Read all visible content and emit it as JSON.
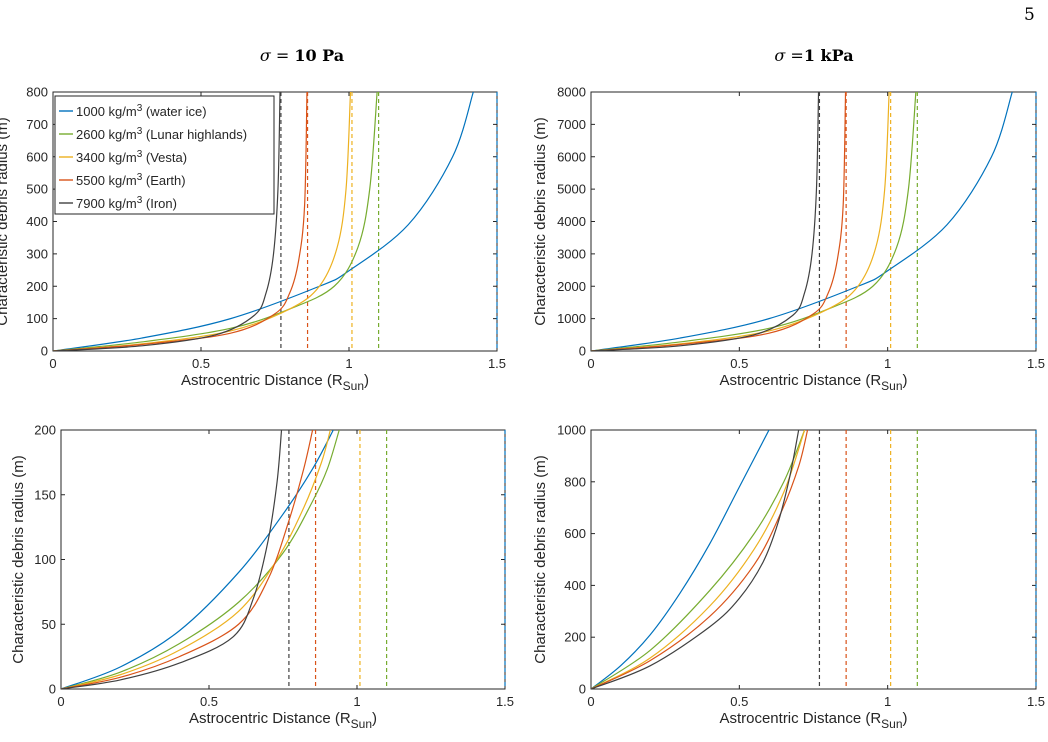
{
  "page_number": "5",
  "column_titles": [
    {
      "symbol": "σ",
      "rest": " = ",
      "value": "10 Pa"
    },
    {
      "symbol": "σ",
      "rest": " =",
      "value": "1 kPa"
    }
  ],
  "legend": [
    {
      "label_pre": "1000 kg/m",
      "sup": "3",
      "label_post": " (water ice)",
      "color": "#0072BD"
    },
    {
      "label_pre": "2600 kg/m",
      "sup": "3",
      "label_post": " (Lunar highlands)",
      "color": "#77AC30"
    },
    {
      "label_pre": "3400 kg/m",
      "sup": "3",
      "label_post": " (Vesta)",
      "color": "#EDB120"
    },
    {
      "label_pre": "5500 kg/m",
      "sup": "3",
      "label_post": " (Earth)",
      "color": "#D95319"
    },
    {
      "label_pre": "7900 kg/m",
      "sup": "3",
      "label_post": " (Iron)",
      "color": "#404040"
    }
  ],
  "chart_data": [
    {
      "type": "line",
      "xlabel": "Astrocentric Distance (R",
      "xlabel_sub": "Sun",
      "xlabel_end": ")",
      "ylabel": "Characteristic debris radius (m)",
      "xlim": [
        0,
        1.5
      ],
      "ylim": [
        0,
        800
      ],
      "xticks": [
        0,
        0.5,
        1,
        1.5
      ],
      "xtick_labels": [
        "0",
        "0.5",
        "1",
        "1.5"
      ],
      "yticks": [
        0,
        100,
        200,
        300,
        400,
        500,
        600,
        700,
        800
      ],
      "ytick_labels": [
        "0",
        "100",
        "200",
        "300",
        "400",
        "500",
        "600",
        "700",
        "800"
      ],
      "legend_position": "top-left",
      "grid": false,
      "asymptotes": [
        1.5,
        1.1,
        1.01,
        0.86,
        0.77
      ],
      "series": [
        {
          "name": "1000 kg/m3 (water ice)",
          "x": [
            0,
            0.3,
            0.6,
            0.9,
            1.0,
            1.2,
            1.35,
            1.42
          ],
          "y": [
            0,
            40,
            100,
            200,
            248,
            390,
            600,
            800
          ]
        },
        {
          "name": "2600 kg/m3 (Lunar highlands)",
          "x": [
            0,
            0.3,
            0.6,
            0.8,
            0.95,
            1.03,
            1.07,
            1.095
          ],
          "y": [
            0,
            28,
            70,
            130,
            200,
            320,
            500,
            800
          ]
        },
        {
          "name": "3400 kg/m3 (Vesta)",
          "x": [
            0,
            0.3,
            0.6,
            0.8,
            0.9,
            0.96,
            0.99,
            1.005
          ],
          "y": [
            0,
            22,
            62,
            130,
            200,
            320,
            500,
            800
          ]
        },
        {
          "name": "5500 kg/m3 (Earth)",
          "x": [
            0,
            0.3,
            0.6,
            0.75,
            0.8,
            0.83,
            0.85,
            0.858
          ],
          "y": [
            0,
            20,
            55,
            115,
            180,
            280,
            450,
            800
          ]
        },
        {
          "name": "7900 kg/m3 (Iron)",
          "x": [
            0,
            0.3,
            0.55,
            0.68,
            0.72,
            0.745,
            0.76,
            0.767
          ],
          "y": [
            0,
            16,
            50,
            110,
            180,
            300,
            500,
            800
          ]
        }
      ]
    },
    {
      "type": "line",
      "xlabel": "Astrocentric Distance (R",
      "xlabel_sub": "Sun",
      "xlabel_end": ")",
      "ylabel": "Characteristic debris radius (m)",
      "xlim": [
        0,
        1.5
      ],
      "ylim": [
        0,
        8000
      ],
      "xticks": [
        0,
        0.5,
        1,
        1.5
      ],
      "xtick_labels": [
        "0",
        "0.5",
        "1",
        "1.5"
      ],
      "yticks": [
        0,
        1000,
        2000,
        3000,
        4000,
        5000,
        6000,
        7000,
        8000
      ],
      "ytick_labels": [
        "0",
        "1000",
        "2000",
        "3000",
        "4000",
        "5000",
        "6000",
        "7000",
        "8000"
      ],
      "grid": false,
      "asymptotes": [
        1.5,
        1.1,
        1.01,
        0.86,
        0.77
      ],
      "series": [
        {
          "name": "1000 kg/m3 (water ice)",
          "x": [
            0,
            0.3,
            0.6,
            0.9,
            1.0,
            1.2,
            1.35,
            1.42
          ],
          "y": [
            0,
            400,
            1000,
            2000,
            2480,
            3900,
            6000,
            8000
          ]
        },
        {
          "name": "2600 kg/m3 (Lunar highlands)",
          "x": [
            0,
            0.3,
            0.6,
            0.8,
            0.95,
            1.03,
            1.07,
            1.095
          ],
          "y": [
            0,
            280,
            700,
            1300,
            2000,
            3200,
            5000,
            8000
          ]
        },
        {
          "name": "3400 kg/m3 (Vesta)",
          "x": [
            0,
            0.3,
            0.6,
            0.8,
            0.9,
            0.96,
            0.99,
            1.005
          ],
          "y": [
            0,
            220,
            620,
            1300,
            2000,
            3200,
            5000,
            8000
          ]
        },
        {
          "name": "5500 kg/m3 (Earth)",
          "x": [
            0,
            0.3,
            0.6,
            0.75,
            0.8,
            0.83,
            0.85,
            0.858
          ],
          "y": [
            0,
            200,
            550,
            1150,
            1800,
            2800,
            4500,
            8000
          ]
        },
        {
          "name": "7900 kg/m3 (Iron)",
          "x": [
            0,
            0.3,
            0.55,
            0.68,
            0.72,
            0.745,
            0.76,
            0.767
          ],
          "y": [
            0,
            160,
            500,
            1100,
            1800,
            3000,
            5000,
            8000
          ]
        }
      ]
    },
    {
      "type": "line",
      "xlabel": "Astrocentric Distance (R",
      "xlabel_sub": "Sun",
      "xlabel_end": ")",
      "ylabel": "Characteristic debris radius (m)",
      "xlim": [
        0,
        1.5
      ],
      "ylim": [
        0,
        200
      ],
      "xticks": [
        0,
        0.5,
        1,
        1.5
      ],
      "xtick_labels": [
        "0",
        "0.5",
        "1",
        "1.5"
      ],
      "yticks": [
        0,
        50,
        100,
        150,
        200
      ],
      "ytick_labels": [
        "0",
        "50",
        "100",
        "150",
        "200"
      ],
      "grid": false,
      "asymptotes": [
        1.5,
        1.1,
        1.01,
        0.86,
        0.77
      ],
      "series": [
        {
          "name": "1000 kg/m3 (water ice)",
          "x": [
            0,
            0.2,
            0.4,
            0.6,
            0.75,
            0.85,
            0.92
          ],
          "y": [
            0,
            17,
            45,
            90,
            135,
            170,
            200
          ]
        },
        {
          "name": "2600 kg/m3 (Lunar highlands)",
          "x": [
            0,
            0.2,
            0.4,
            0.6,
            0.75,
            0.85,
            0.9,
            0.94
          ],
          "y": [
            0,
            13,
            35,
            67,
            105,
            145,
            170,
            200
          ]
        },
        {
          "name": "3400 kg/m3 (Vesta)",
          "x": [
            0,
            0.2,
            0.4,
            0.6,
            0.73,
            0.82,
            0.88,
            0.91
          ],
          "y": [
            0,
            11,
            30,
            60,
            100,
            140,
            175,
            200
          ]
        },
        {
          "name": "5500 kg/m3 (Earth)",
          "x": [
            0,
            0.2,
            0.4,
            0.6,
            0.7,
            0.77,
            0.82,
            0.85
          ],
          "y": [
            0,
            9,
            25,
            50,
            85,
            130,
            170,
            200
          ]
        },
        {
          "name": "7900 kg/m3 (Iron)",
          "x": [
            0,
            0.2,
            0.4,
            0.58,
            0.65,
            0.7,
            0.73,
            0.745
          ],
          "y": [
            0,
            7,
            20,
            40,
            70,
            115,
            160,
            200
          ]
        }
      ]
    },
    {
      "type": "line",
      "xlabel": "Astrocentric Distance (R",
      "xlabel_sub": "Sun",
      "xlabel_end": ")",
      "ylabel": "Characteristic debris radius (m)",
      "xlim": [
        0,
        1.5
      ],
      "ylim": [
        0,
        1000
      ],
      "xticks": [
        0,
        0.5,
        1,
        1.5
      ],
      "xtick_labels": [
        "0",
        "0.5",
        "1",
        "1.5"
      ],
      "yticks": [
        0,
        200,
        400,
        600,
        800,
        1000
      ],
      "ytick_labels": [
        "0",
        "200",
        "400",
        "600",
        "800",
        "1000"
      ],
      "grid": false,
      "asymptotes": [
        1.5,
        1.1,
        1.01,
        0.86,
        0.77
      ],
      "series": [
        {
          "name": "1000 kg/m3 (water ice)",
          "x": [
            0,
            0.1,
            0.2,
            0.3,
            0.4,
            0.5,
            0.6
          ],
          "y": [
            0,
            90,
            210,
            370,
            560,
            780,
            1000
          ]
        },
        {
          "name": "2600 kg/m3 (Lunar highlands)",
          "x": [
            0,
            0.2,
            0.4,
            0.55,
            0.65,
            0.72
          ],
          "y": [
            0,
            150,
            380,
            600,
            800,
            1000
          ]
        },
        {
          "name": "3400 kg/m3 (Vesta)",
          "x": [
            0,
            0.2,
            0.4,
            0.55,
            0.65,
            0.72
          ],
          "y": [
            0,
            120,
            320,
            540,
            760,
            1000
          ]
        },
        {
          "name": "5500 kg/m3 (Earth)",
          "x": [
            0,
            0.2,
            0.4,
            0.55,
            0.64,
            0.7,
            0.73
          ],
          "y": [
            0,
            110,
            280,
            480,
            680,
            860,
            1000
          ]
        },
        {
          "name": "7900 kg/m3 (Iron)",
          "x": [
            0,
            0.2,
            0.4,
            0.5,
            0.58,
            0.63,
            0.67,
            0.7
          ],
          "y": [
            0,
            90,
            240,
            350,
            490,
            640,
            820,
            1000
          ]
        }
      ]
    }
  ]
}
